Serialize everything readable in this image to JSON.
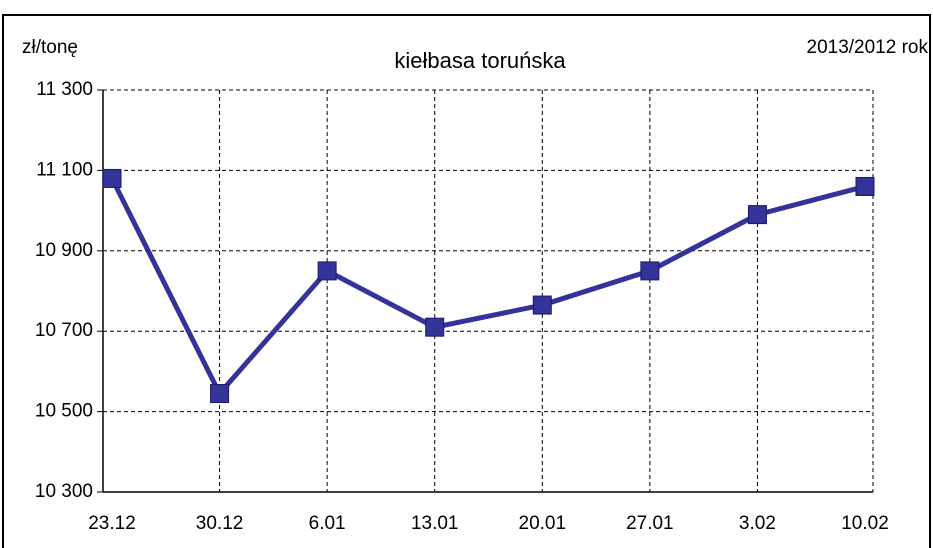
{
  "chart_data": {
    "type": "line",
    "title": "kiełbasa toruńska",
    "ylabel": "zł/tonę",
    "subtitle": "2013/2012 rok",
    "categories": [
      "23.12",
      "30.12",
      "6.01",
      "13.01",
      "20.01",
      "27.01",
      "3.02",
      "10.02"
    ],
    "series": [
      {
        "name": "kiełbasa toruńska",
        "color": "#333399",
        "values": [
          11080,
          10545,
          10850,
          10710,
          10765,
          10850,
          10990,
          11060
        ]
      }
    ],
    "ylim": [
      10300,
      11300
    ],
    "yticks": [
      {
        "value": 10300,
        "label": "10 300"
      },
      {
        "value": 10500,
        "label": "10 500"
      },
      {
        "value": 10700,
        "label": "10 700"
      },
      {
        "value": 10900,
        "label": "10 900"
      },
      {
        "value": 11100,
        "label": "11 100"
      },
      {
        "value": 11300,
        "label": "11 300"
      }
    ],
    "grid": true
  }
}
